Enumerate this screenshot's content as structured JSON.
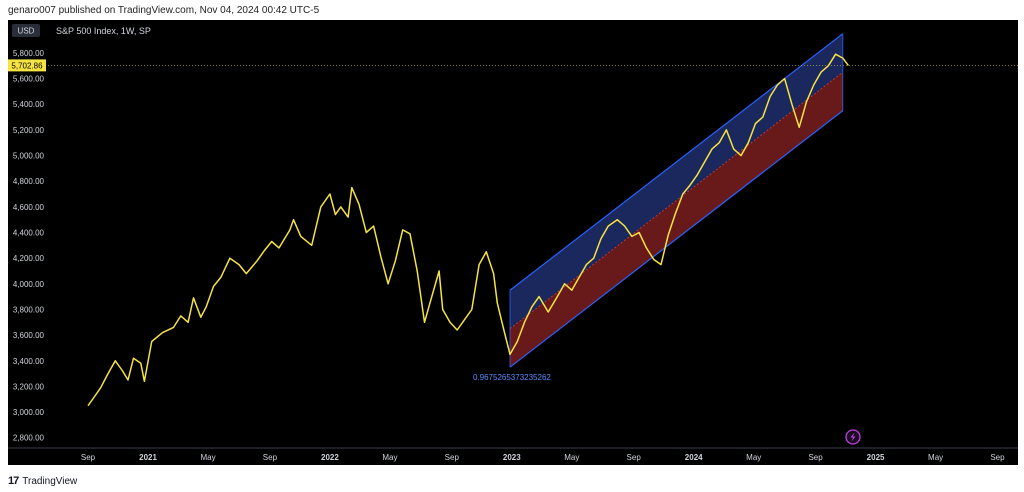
{
  "header": {
    "published_text": "genaro007 published on TradingView.com, Nov 04, 2024 00:42 UTC-5"
  },
  "chart_meta": {
    "currency_label": "USD",
    "symbol_label": "S&P 500 Index, 1W, SP",
    "current_price_label": "5,702.86",
    "channel_label": "0.9675265373235262"
  },
  "footer": {
    "brand_text": "TradingView"
  },
  "colors": {
    "price_line": "#f5e342",
    "channel_upper": "#2962ff",
    "channel_lower_fill": "#7a1f1f",
    "channel_upper_fill": "#1e2f6e",
    "price_tag_bg": "#f5e342",
    "axis_text": "#d1d4dc",
    "lightning_icon": "#c040e0"
  },
  "chart_data": {
    "type": "line",
    "title": "S&P 500 Index, 1W, SP",
    "series": [
      {
        "values": [
          [
            2020.67,
            3050
          ],
          [
            2020.7,
            3110
          ],
          [
            2020.74,
            3190
          ],
          [
            2020.78,
            3300
          ],
          [
            2020.82,
            3400
          ],
          [
            2020.86,
            3320
          ],
          [
            2020.89,
            3250
          ],
          [
            2020.92,
            3420
          ],
          [
            2020.96,
            3380
          ],
          [
            2020.98,
            3240
          ],
          [
            2021.02,
            3550
          ],
          [
            2021.08,
            3620
          ],
          [
            2021.14,
            3660
          ],
          [
            2021.18,
            3750
          ],
          [
            2021.22,
            3700
          ],
          [
            2021.25,
            3890
          ],
          [
            2021.29,
            3740
          ],
          [
            2021.32,
            3820
          ],
          [
            2021.36,
            3980
          ],
          [
            2021.4,
            4050
          ],
          [
            2021.45,
            4200
          ],
          [
            2021.5,
            4150
          ],
          [
            2021.54,
            4080
          ],
          [
            2021.6,
            4180
          ],
          [
            2021.64,
            4260
          ],
          [
            2021.68,
            4330
          ],
          [
            2021.72,
            4280
          ],
          [
            2021.78,
            4420
          ],
          [
            2021.8,
            4500
          ],
          [
            2021.84,
            4370
          ],
          [
            2021.9,
            4300
          ],
          [
            2021.95,
            4600
          ],
          [
            2022.0,
            4700
          ],
          [
            2022.03,
            4540
          ],
          [
            2022.06,
            4600
          ],
          [
            2022.1,
            4520
          ],
          [
            2022.12,
            4750
          ],
          [
            2022.16,
            4620
          ],
          [
            2022.2,
            4400
          ],
          [
            2022.24,
            4450
          ],
          [
            2022.28,
            4210
          ],
          [
            2022.32,
            4000
          ],
          [
            2022.36,
            4180
          ],
          [
            2022.4,
            4420
          ],
          [
            2022.44,
            4390
          ],
          [
            2022.48,
            4100
          ],
          [
            2022.52,
            3700
          ],
          [
            2022.56,
            3900
          ],
          [
            2022.6,
            4100
          ],
          [
            2022.62,
            3800
          ],
          [
            2022.66,
            3700
          ],
          [
            2022.7,
            3640
          ],
          [
            2022.74,
            3720
          ],
          [
            2022.78,
            3800
          ],
          [
            2022.82,
            4150
          ],
          [
            2022.86,
            4250
          ],
          [
            2022.9,
            4080
          ],
          [
            2022.92,
            3850
          ],
          [
            2022.96,
            3620
          ],
          [
            2022.99,
            3450
          ],
          [
            2023.03,
            3550
          ],
          [
            2023.07,
            3700
          ],
          [
            2023.11,
            3820
          ],
          [
            2023.15,
            3900
          ],
          [
            2023.2,
            3780
          ],
          [
            2023.25,
            3900
          ],
          [
            2023.29,
            4000
          ],
          [
            2023.33,
            3950
          ],
          [
            2023.37,
            4050
          ],
          [
            2023.41,
            4150
          ],
          [
            2023.45,
            4200
          ],
          [
            2023.49,
            4350
          ],
          [
            2023.53,
            4450
          ],
          [
            2023.58,
            4500
          ],
          [
            2023.62,
            4450
          ],
          [
            2023.66,
            4370
          ],
          [
            2023.7,
            4400
          ],
          [
            2023.74,
            4280
          ],
          [
            2023.78,
            4190
          ],
          [
            2023.82,
            4150
          ],
          [
            2023.86,
            4380
          ],
          [
            2023.9,
            4550
          ],
          [
            2023.94,
            4700
          ],
          [
            2023.98,
            4770
          ],
          [
            2024.02,
            4850
          ],
          [
            2024.06,
            4950
          ],
          [
            2024.1,
            5050
          ],
          [
            2024.14,
            5100
          ],
          [
            2024.18,
            5200
          ],
          [
            2024.22,
            5050
          ],
          [
            2024.26,
            5000
          ],
          [
            2024.3,
            5100
          ],
          [
            2024.34,
            5250
          ],
          [
            2024.38,
            5300
          ],
          [
            2024.42,
            5460
          ],
          [
            2024.46,
            5550
          ],
          [
            2024.5,
            5600
          ],
          [
            2024.54,
            5400
          ],
          [
            2024.58,
            5220
          ],
          [
            2024.62,
            5420
          ],
          [
            2024.66,
            5550
          ],
          [
            2024.7,
            5650
          ],
          [
            2024.74,
            5700
          ],
          [
            2024.78,
            5790
          ],
          [
            2024.82,
            5760
          ],
          [
            2024.85,
            5702.86
          ]
        ]
      }
    ],
    "channel": {
      "start": [
        2022.99,
        3950
      ],
      "end": [
        2024.82,
        5950
      ],
      "mid_start": [
        2022.99,
        3650
      ],
      "mid_end": [
        2024.82,
        5650
      ],
      "lower_start": [
        2022.99,
        3350
      ],
      "lower_end": [
        2024.82,
        5350
      ]
    },
    "x_ticks": [
      {
        "t": 2020.67,
        "label": "Sep"
      },
      {
        "t": 2021.0,
        "label": "2021"
      },
      {
        "t": 2021.33,
        "label": "May"
      },
      {
        "t": 2021.67,
        "label": "Sep"
      },
      {
        "t": 2022.0,
        "label": "2022"
      },
      {
        "t": 2022.33,
        "label": "May"
      },
      {
        "t": 2022.67,
        "label": "Sep"
      },
      {
        "t": 2023.0,
        "label": "2023"
      },
      {
        "t": 2023.33,
        "label": "May"
      },
      {
        "t": 2023.67,
        "label": "Sep"
      },
      {
        "t": 2024.0,
        "label": "2024"
      },
      {
        "t": 2024.33,
        "label": "May"
      },
      {
        "t": 2024.67,
        "label": "Sep"
      },
      {
        "t": 2025.0,
        "label": "2025"
      },
      {
        "t": 2025.33,
        "label": "May"
      },
      {
        "t": 2025.67,
        "label": "Sep"
      }
    ],
    "y_ticks": [
      2800,
      3000,
      3200,
      3400,
      3600,
      3800,
      4000,
      4200,
      4400,
      4600,
      4800,
      5000,
      5200,
      5400,
      5600,
      5800
    ],
    "y_tick_labels": [
      "2,800.00",
      "3,000.00",
      "3,200.00",
      "3,400.00",
      "3,600.00",
      "3,800.00",
      "4,000.00",
      "4,200.00",
      "4,400.00",
      "4,600.00",
      "4,800.00",
      "5,000.00",
      "5,200.00",
      "5,400.00",
      "5,600.00",
      "5,800.00"
    ],
    "xlim": [
      2020.45,
      2025.75
    ],
    "ylim": [
      2720,
      6010
    ],
    "current_price": 5702.86
  }
}
